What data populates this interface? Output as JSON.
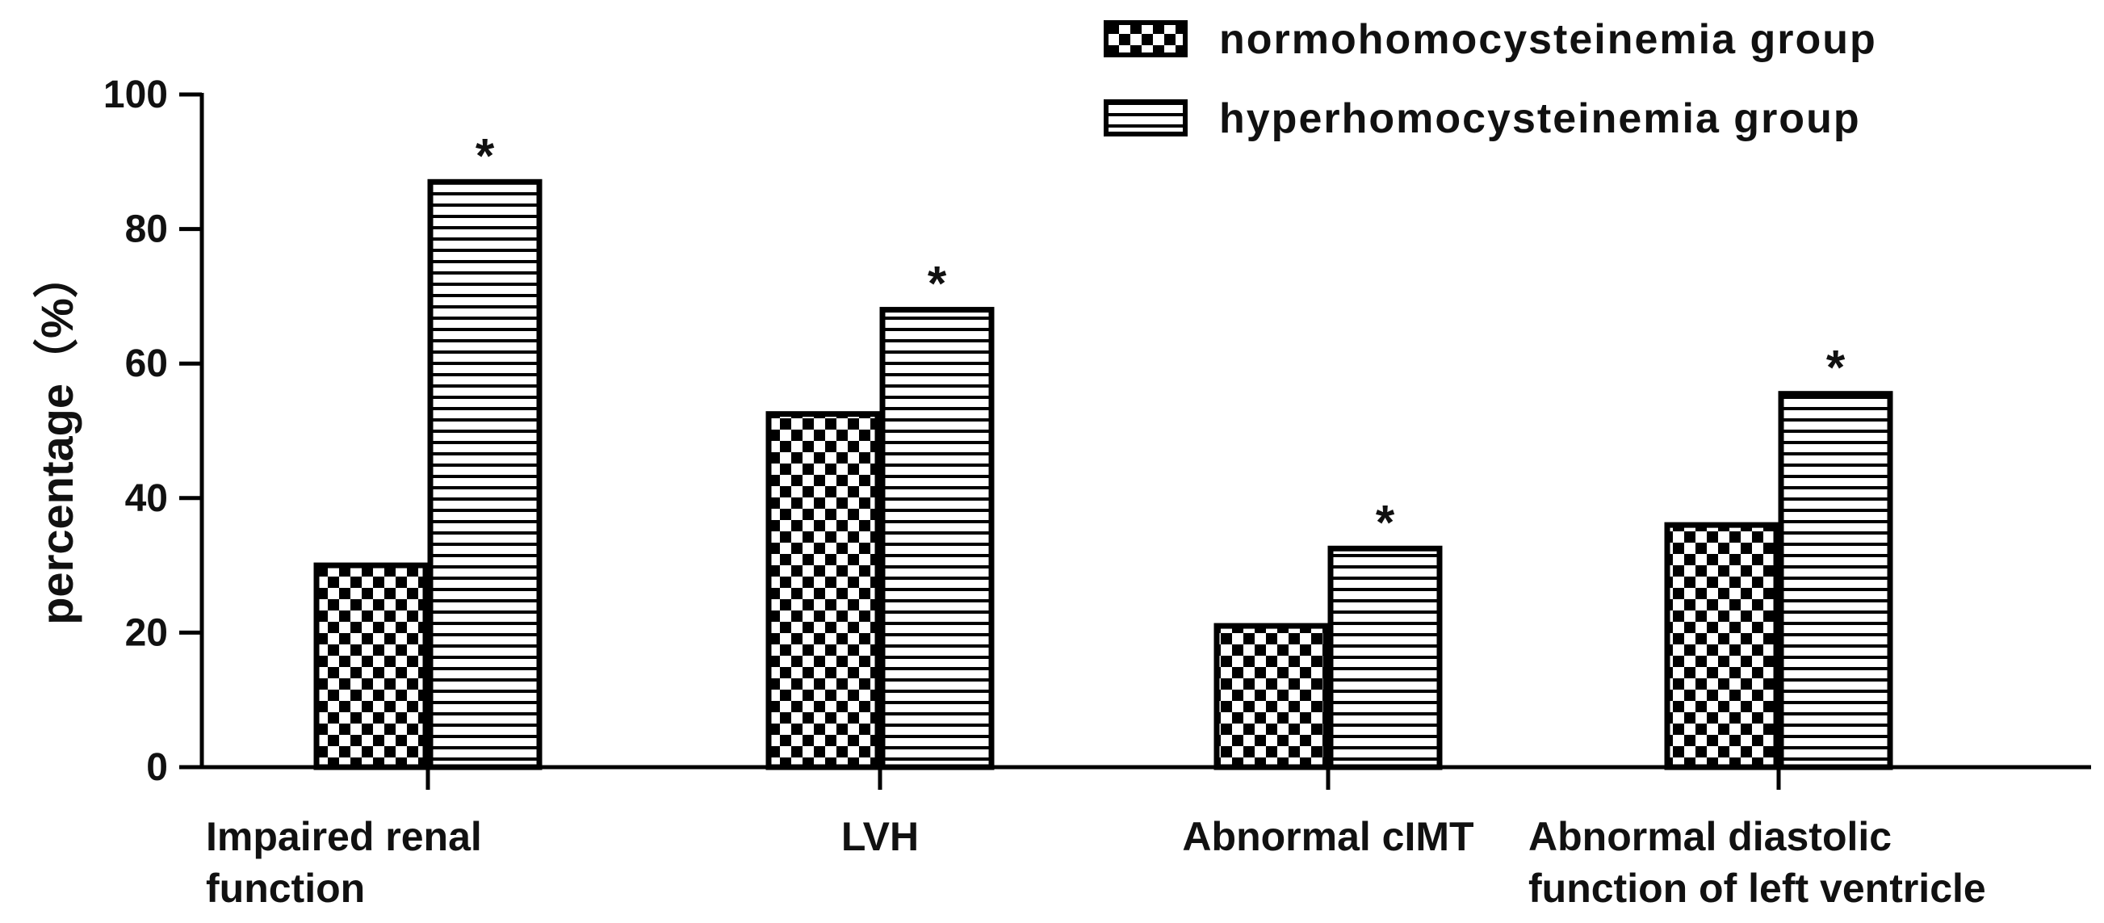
{
  "chart_data": {
    "type": "bar",
    "title": "",
    "xlabel": "",
    "ylabel": "percentage（%）",
    "ylim": [
      0,
      100
    ],
    "yticks": [
      0,
      20,
      40,
      60,
      80,
      100
    ],
    "grid": false,
    "legend_position": "top-right",
    "categories": [
      [
        "Impaired renal",
        "function"
      ],
      [
        "LVH"
      ],
      [
        "Abnormal cIMT"
      ],
      [
        "Abnormal diastolic",
        "function of left ventricle"
      ]
    ],
    "series": [
      {
        "name": "normohomocysteinemia group",
        "pattern": "checkerboard",
        "values": [
          30,
          52.5,
          21,
          36
        ]
      },
      {
        "name": "hyperhomocysteinemia group",
        "pattern": "horizontal-stripes",
        "values": [
          87,
          68,
          32.5,
          55.5
        ]
      }
    ],
    "annotations": [
      {
        "category_index": 0,
        "series_index": 1,
        "text": "*"
      },
      {
        "category_index": 1,
        "series_index": 1,
        "text": "*"
      },
      {
        "category_index": 2,
        "series_index": 1,
        "text": "*"
      },
      {
        "category_index": 3,
        "series_index": 1,
        "text": "*"
      }
    ],
    "colors": {
      "bar_fill": "#000000",
      "bar_background": "#ffffff",
      "axis": "#000000"
    }
  }
}
